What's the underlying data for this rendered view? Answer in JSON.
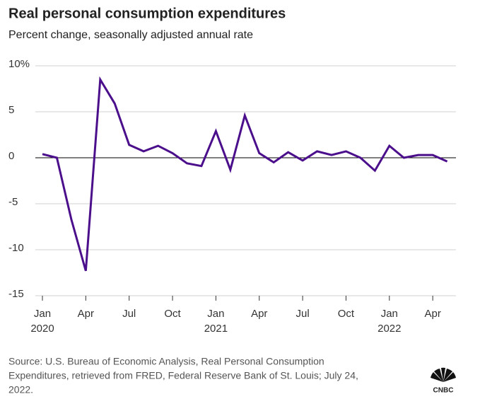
{
  "chart_data": {
    "type": "line",
    "title": "Real personal consumption expenditures",
    "subtitle": "Percent change, seasonally adjusted annual rate",
    "categories": [
      "Jan",
      null,
      null,
      "Apr",
      null,
      null,
      "Jul",
      null,
      null,
      "Oct",
      null,
      null,
      "Jan",
      null,
      null,
      "Apr",
      null,
      null,
      "Jul",
      null,
      null,
      "Oct",
      null,
      null,
      "Jan",
      null,
      null,
      "Apr",
      null
    ],
    "years": [
      "2020",
      null,
      null,
      null,
      null,
      null,
      null,
      null,
      null,
      null,
      null,
      null,
      "2021",
      null,
      null,
      null,
      null,
      null,
      null,
      null,
      null,
      null,
      null,
      null,
      "2022",
      null,
      null,
      null,
      null
    ],
    "series": [
      {
        "color": "#4b0f8c",
        "values": [
          0.4,
          0,
          -6.7,
          -12.3,
          8.5,
          5.9,
          1.4,
          0.7,
          1.3,
          0.5,
          -0.6,
          -0.9,
          2.9,
          -1.3,
          4.6,
          0.5,
          -0.5,
          0.6,
          -0.3,
          0.7,
          0.3,
          0.7,
          0,
          -1.4,
          1.3,
          0,
          0.3,
          0.3,
          -0.4
        ]
      }
    ],
    "ylim": [
      -15,
      10
    ],
    "yticks": [
      {
        "value": 10,
        "label": "10%"
      },
      5,
      0,
      -5,
      -10,
      -15
    ],
    "grid": true,
    "source": [
      "Source: U.S. Bureau of Economic Analysis, Real Personal Consumption",
      "Expenditures, retrieved from FRED, Federal Reserve Bank of St. Louis; July 24,",
      "2022."
    ],
    "logo": "CNBC"
  }
}
